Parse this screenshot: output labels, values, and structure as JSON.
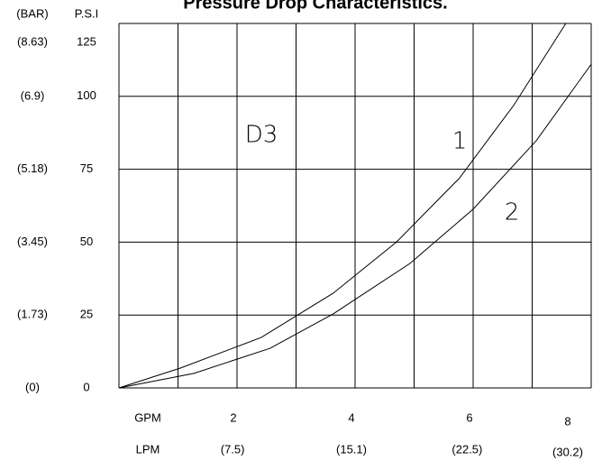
{
  "chart_data": {
    "type": "line",
    "title": "Pressure Drop Characteristics.",
    "y_axis_label": "P.S.I",
    "y2_axis_label": "(BAR)",
    "x_axis_label": "GPM",
    "x2_axis_label": "LPM",
    "xlim": [
      0,
      8
    ],
    "ylim": [
      0,
      125
    ],
    "y2lim": [
      0,
      8.63
    ],
    "x2lim": [
      0,
      30.2
    ],
    "yticks": [
      0,
      25,
      50,
      75,
      100,
      125
    ],
    "y2ticks": [
      {
        "value": 0,
        "label": "(0)"
      },
      {
        "value": 1.73,
        "label": "(1.73)"
      },
      {
        "value": 3.45,
        "label": "(3.45)"
      },
      {
        "value": 5.18,
        "label": "(5.18)"
      },
      {
        "value": 6.9,
        "label": "(6.9)"
      },
      {
        "value": 8.63,
        "label": "(8.63)"
      }
    ],
    "xticks": [
      2,
      4,
      6,
      8
    ],
    "x2ticks": [
      {
        "value": 7.5,
        "label": "(7.5)"
      },
      {
        "value": 15.1,
        "label": "(15.1)"
      },
      {
        "value": 22.5,
        "label": "(22.5)"
      },
      {
        "value": 30.2,
        "label": "(30.2)"
      }
    ],
    "xgrid_lines": [
      0,
      1,
      2,
      3,
      4,
      5,
      6,
      7,
      8
    ],
    "grid": true,
    "annotations": [
      "D3",
      "1",
      "2"
    ],
    "series": [
      {
        "name": "1",
        "color": "#000000",
        "x": [
          0,
          1.04,
          2.41,
          3.63,
          4.7,
          5.77,
          6.69,
          7.57
        ],
        "values": [
          0,
          6.8,
          17.3,
          32.5,
          50,
          72,
          97,
          125
        ]
      },
      {
        "name": "2",
        "color": "#000000",
        "x": [
          0,
          1.27,
          2.56,
          3.63,
          4.93,
          6.0,
          7.07,
          8
        ],
        "values": [
          0,
          5,
          13.6,
          25.4,
          42.7,
          61.3,
          84.8,
          111
        ]
      }
    ]
  }
}
